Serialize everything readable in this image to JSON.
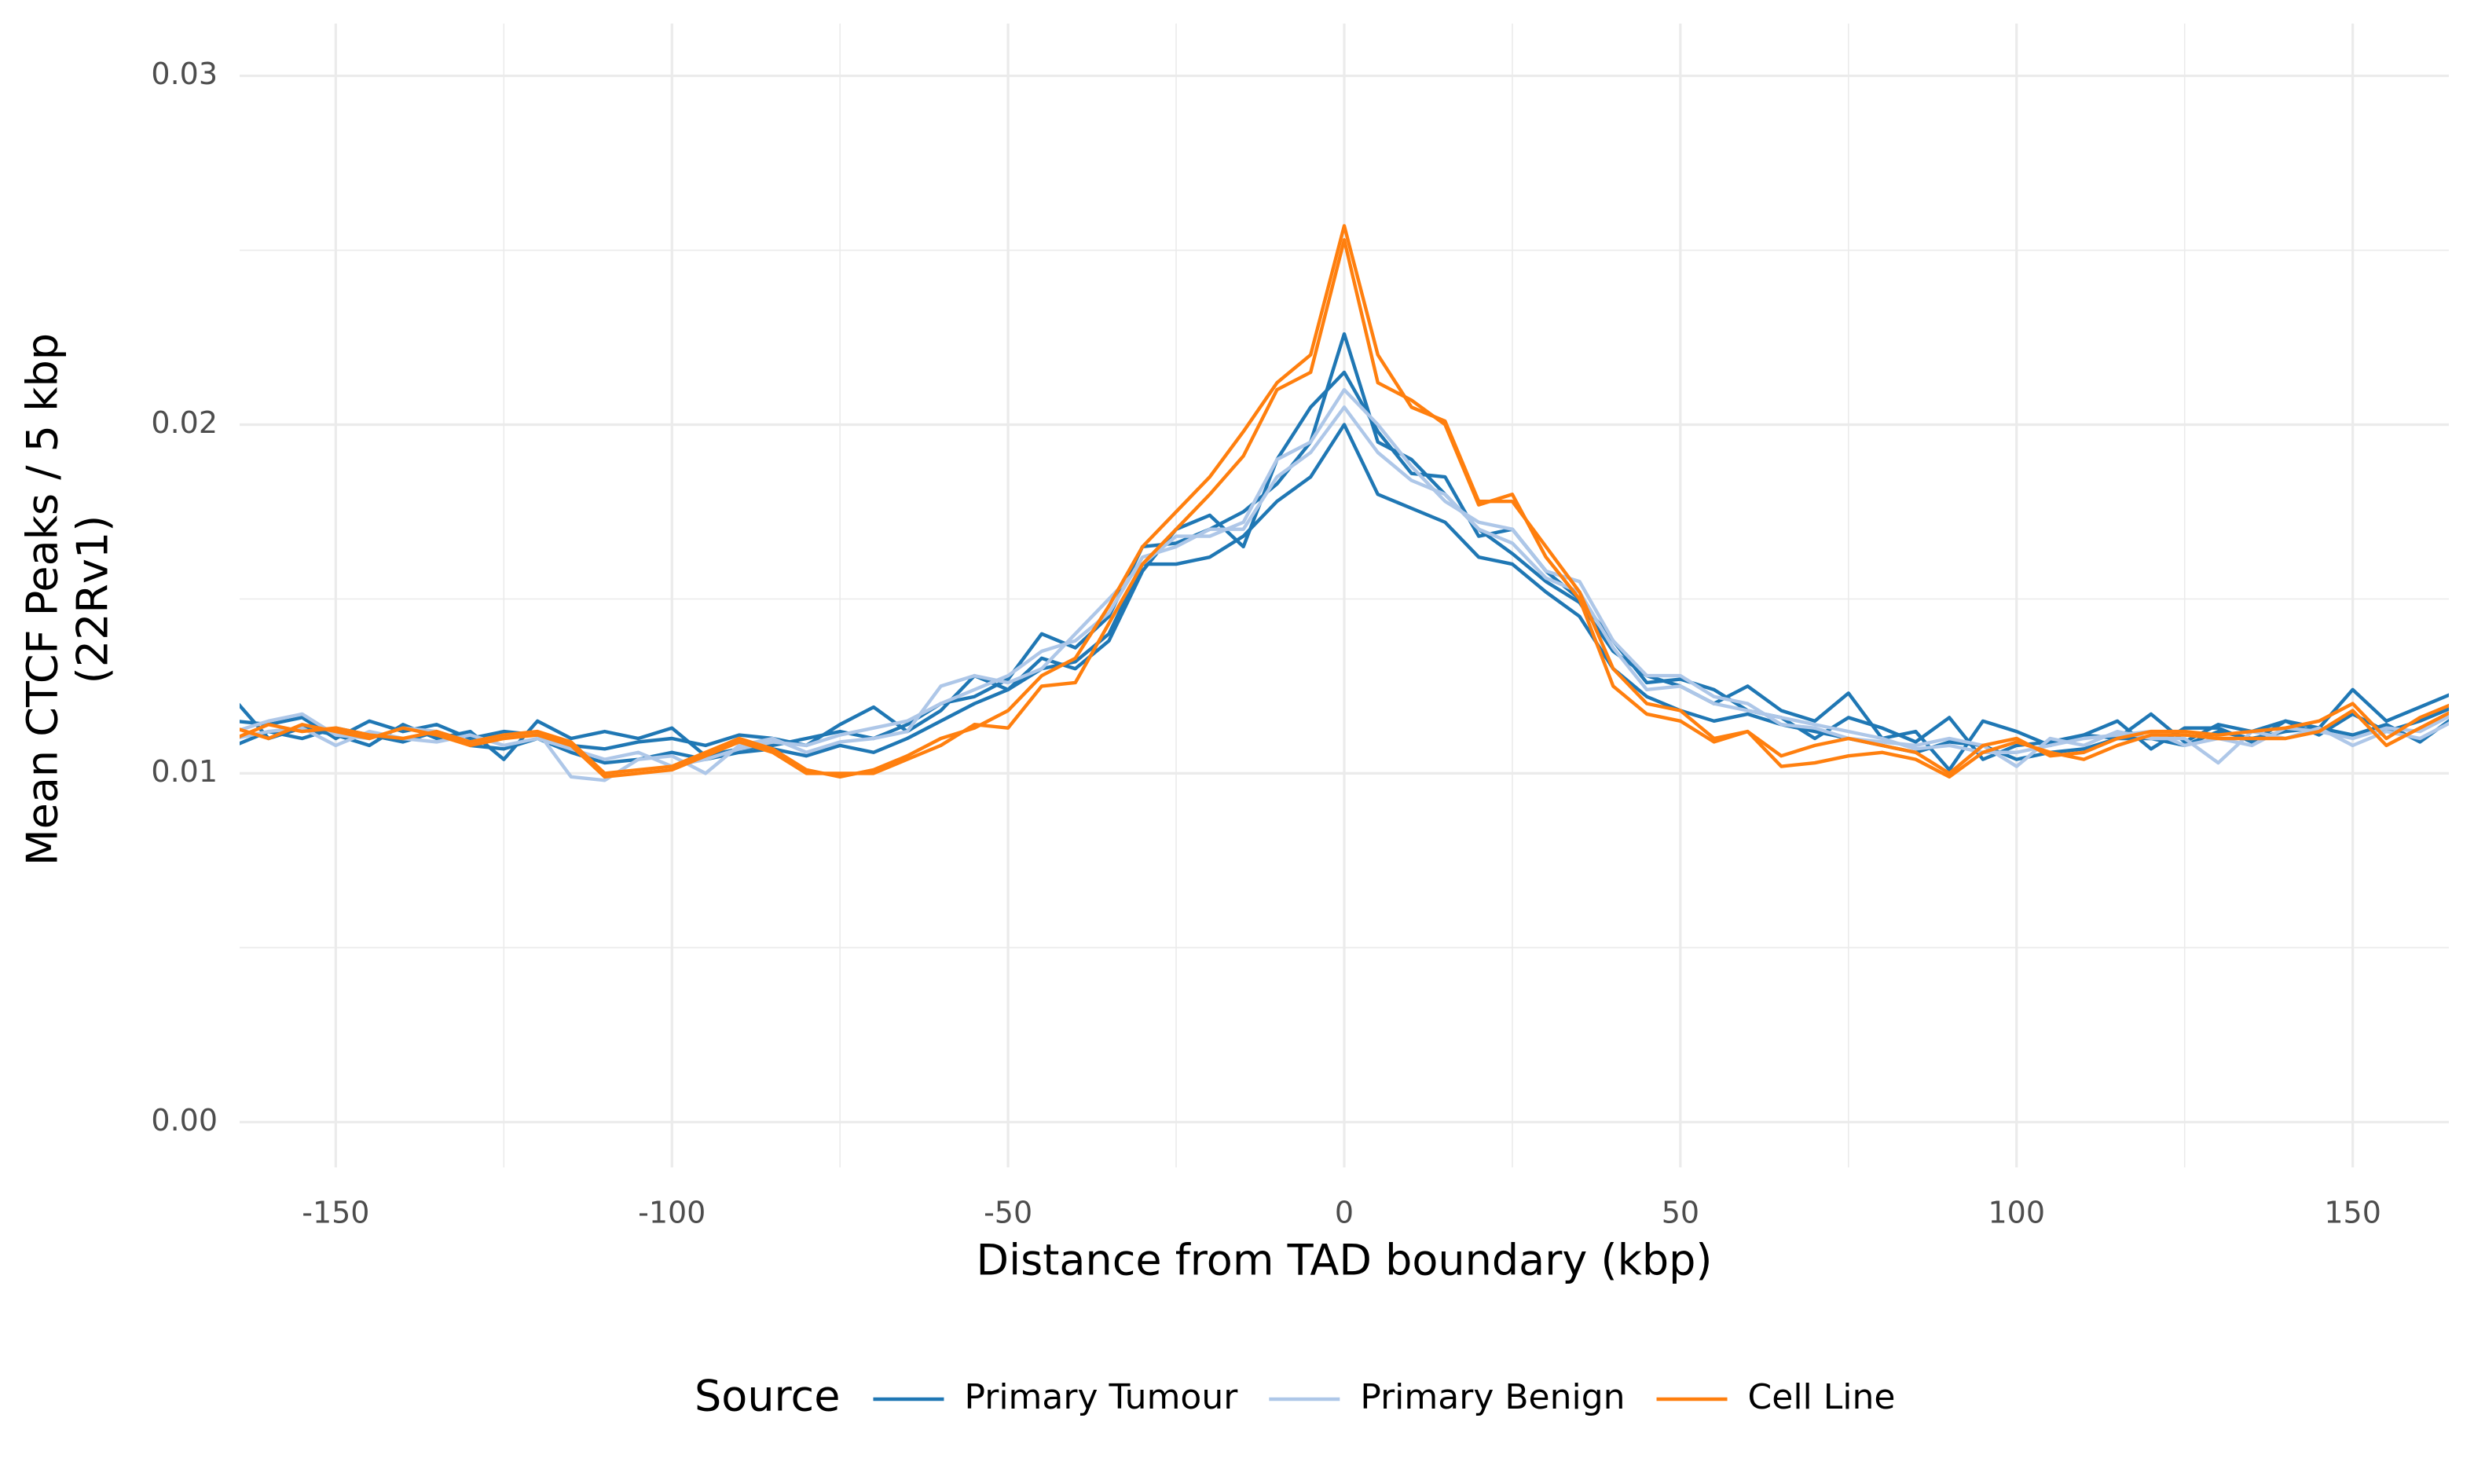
{
  "chart_data": {
    "type": "line",
    "xlabel": "Distance from TAD boundary (kbp)",
    "ylabel": [
      "Mean CTCF Peaks / 5 kbp",
      "(22Rv1)"
    ],
    "legend_title": "Source",
    "legend": "bottom",
    "grid": true,
    "xlim": [
      -164.3,
      164.3
    ],
    "ylim": [
      -0.0013,
      0.0315
    ],
    "xticks": [
      -150,
      -100,
      -50,
      0,
      50,
      100,
      150
    ],
    "yticks": [
      {
        "value": 0,
        "label": "0.00"
      },
      0.01,
      0.02,
      0.03
    ],
    "xminor": [
      -125,
      -75,
      -25,
      25,
      75,
      125
    ],
    "yminor": [
      0.005,
      0.015,
      0.025
    ],
    "x": [
      -165,
      -160,
      -155,
      -150,
      -145,
      -140,
      -135,
      -130,
      -125,
      -120,
      -115,
      -110,
      -105,
      -100,
      -95,
      -90,
      -85,
      -80,
      -75,
      -70,
      -65,
      -60,
      -55,
      -50,
      -45,
      -40,
      -35,
      -30,
      -25,
      -20,
      -15,
      -10,
      -5,
      0,
      5,
      10,
      15,
      20,
      25,
      30,
      35,
      40,
      45,
      50,
      55,
      60,
      65,
      70,
      75,
      80,
      85,
      90,
      95,
      100,
      105,
      110,
      115,
      120,
      125,
      130,
      135,
      140,
      145,
      150,
      155,
      160,
      165
    ],
    "series": [
      {
        "name": "Primary Tumour",
        "color": "#1f77b4",
        "values": [
          0.0121,
          0.011,
          0.0113,
          0.0111,
          0.0108,
          0.0114,
          0.011,
          0.0112,
          0.0104,
          0.0115,
          0.011,
          0.0112,
          0.011,
          0.0113,
          0.0105,
          0.0107,
          0.0108,
          0.011,
          0.0112,
          0.011,
          0.0114,
          0.012,
          0.0122,
          0.0127,
          0.014,
          0.0136,
          0.0145,
          0.0165,
          0.0166,
          0.017,
          0.0175,
          0.0183,
          0.0195,
          0.0226,
          0.0195,
          0.019,
          0.018,
          0.017,
          0.0163,
          0.0155,
          0.0149,
          0.0135,
          0.0128,
          0.0125,
          0.012,
          0.0125,
          0.0118,
          0.0115,
          0.0123,
          0.011,
          0.0112,
          0.0101,
          0.0115,
          0.0112,
          0.0108,
          0.0111,
          0.011,
          0.0117,
          0.0109,
          0.0114,
          0.0112,
          0.0115,
          0.0113,
          0.0124,
          0.0115,
          0.0119,
          0.0123
        ]
      },
      {
        "name": "Primary Tumour",
        "color": "#1f77b4",
        "values": [
          0.0108,
          0.0112,
          0.011,
          0.0113,
          0.0111,
          0.0109,
          0.0112,
          0.0108,
          0.0107,
          0.011,
          0.0106,
          0.0103,
          0.0104,
          0.0106,
          0.0104,
          0.0106,
          0.0107,
          0.0105,
          0.0108,
          0.0106,
          0.011,
          0.0115,
          0.012,
          0.0124,
          0.013,
          0.0132,
          0.014,
          0.016,
          0.016,
          0.0162,
          0.0168,
          0.0178,
          0.0185,
          0.02,
          0.018,
          0.0176,
          0.0172,
          0.0162,
          0.016,
          0.0152,
          0.0145,
          0.013,
          0.0122,
          0.0118,
          0.0115,
          0.0117,
          0.0114,
          0.0112,
          0.011,
          0.0108,
          0.0106,
          0.0109,
          0.0108,
          0.0104,
          0.0106,
          0.0107,
          0.011,
          0.011,
          0.0108,
          0.0112,
          0.011,
          0.0112,
          0.0113,
          0.0111,
          0.0114,
          0.0109,
          0.0116
        ]
      },
      {
        "name": "Primary Tumour",
        "color": "#1f77b4",
        "values": [
          0.0115,
          0.0114,
          0.0116,
          0.011,
          0.0115,
          0.0112,
          0.0114,
          0.011,
          0.0112,
          0.0111,
          0.0108,
          0.0107,
          0.0109,
          0.011,
          0.0108,
          0.0111,
          0.011,
          0.0108,
          0.0114,
          0.0119,
          0.0112,
          0.0118,
          0.0128,
          0.0124,
          0.0133,
          0.013,
          0.0138,
          0.0158,
          0.017,
          0.0174,
          0.0165,
          0.019,
          0.0205,
          0.0215,
          0.0198,
          0.0186,
          0.0185,
          0.0168,
          0.017,
          0.0158,
          0.015,
          0.0138,
          0.0126,
          0.0127,
          0.0124,
          0.0118,
          0.0116,
          0.011,
          0.0116,
          0.0113,
          0.0109,
          0.0116,
          0.0104,
          0.0108,
          0.0109,
          0.0111,
          0.0115,
          0.0107,
          0.0113,
          0.0113,
          0.0109,
          0.0115,
          0.0111,
          0.0117,
          0.0112,
          0.0115,
          0.0119
        ]
      },
      {
        "name": "Primary Benign",
        "color": "#aec7e8",
        "values": [
          0.0112,
          0.0115,
          0.0117,
          0.0111,
          0.011,
          0.0113,
          0.0112,
          0.0109,
          0.011,
          0.0112,
          0.0099,
          0.0098,
          0.0104,
          0.0105,
          0.01,
          0.0108,
          0.011,
          0.0106,
          0.0109,
          0.011,
          0.0112,
          0.0125,
          0.0128,
          0.0126,
          0.013,
          0.014,
          0.015,
          0.016,
          0.0168,
          0.0168,
          0.0172,
          0.019,
          0.0195,
          0.021,
          0.02,
          0.0188,
          0.0178,
          0.0172,
          0.017,
          0.0158,
          0.0155,
          0.0138,
          0.0128,
          0.0128,
          0.0122,
          0.012,
          0.0114,
          0.0113,
          0.011,
          0.0109,
          0.0108,
          0.011,
          0.0108,
          0.0102,
          0.011,
          0.0108,
          0.0112,
          0.011,
          0.011,
          0.0103,
          0.0112,
          0.011,
          0.0113,
          0.0108,
          0.0112,
          0.011,
          0.0115
        ]
      },
      {
        "name": "Primary Benign",
        "color": "#aec7e8",
        "values": [
          0.011,
          0.0112,
          0.0113,
          0.0108,
          0.0112,
          0.011,
          0.0109,
          0.0111,
          0.0108,
          0.011,
          0.0107,
          0.0104,
          0.0106,
          0.0102,
          0.0104,
          0.0107,
          0.0109,
          0.0108,
          0.0111,
          0.0113,
          0.0115,
          0.012,
          0.0124,
          0.0128,
          0.0135,
          0.0138,
          0.0146,
          0.0162,
          0.0165,
          0.017,
          0.017,
          0.0185,
          0.0192,
          0.0205,
          0.0192,
          0.0184,
          0.018,
          0.017,
          0.0166,
          0.0156,
          0.0152,
          0.0136,
          0.0124,
          0.0125,
          0.012,
          0.0118,
          0.0116,
          0.0114,
          0.0112,
          0.011,
          0.0107,
          0.0108,
          0.0106,
          0.0106,
          0.0108,
          0.011,
          0.0111,
          0.0112,
          0.0108,
          0.011,
          0.0108,
          0.0113,
          0.0112,
          0.011,
          0.0113,
          0.0112,
          0.0117
        ]
      },
      {
        "name": "Cell Line",
        "color": "#ff7f0e",
        "values": [
          0.0113,
          0.011,
          0.0114,
          0.0112,
          0.011,
          0.0113,
          0.0111,
          0.0108,
          0.011,
          0.0111,
          0.0108,
          0.0099,
          0.01,
          0.0101,
          0.0105,
          0.0109,
          0.0106,
          0.01,
          0.01,
          0.01,
          0.0104,
          0.0108,
          0.0114,
          0.0113,
          0.0125,
          0.0126,
          0.0143,
          0.016,
          0.017,
          0.018,
          0.0191,
          0.021,
          0.0215,
          0.0253,
          0.0212,
          0.0207,
          0.02,
          0.0177,
          0.018,
          0.0162,
          0.015,
          0.0125,
          0.0117,
          0.0115,
          0.0109,
          0.0112,
          0.0102,
          0.0103,
          0.0105,
          0.0106,
          0.0104,
          0.0099,
          0.0106,
          0.0109,
          0.0106,
          0.0104,
          0.0108,
          0.0111,
          0.0111,
          0.011,
          0.011,
          0.011,
          0.0112,
          0.0118,
          0.0108,
          0.0113,
          0.0118
        ]
      },
      {
        "name": "Cell Line",
        "color": "#ff7f0e",
        "values": [
          0.011,
          0.0114,
          0.0112,
          0.0113,
          0.0111,
          0.011,
          0.0112,
          0.0109,
          0.0111,
          0.0112,
          0.0109,
          0.01,
          0.0101,
          0.0102,
          0.0106,
          0.011,
          0.0107,
          0.0101,
          0.0099,
          0.0101,
          0.0105,
          0.011,
          0.0113,
          0.0118,
          0.0128,
          0.0133,
          0.0148,
          0.0165,
          0.0175,
          0.0185,
          0.0198,
          0.0212,
          0.022,
          0.0257,
          0.022,
          0.0205,
          0.0201,
          0.0178,
          0.0178,
          0.0165,
          0.0152,
          0.013,
          0.012,
          0.0118,
          0.011,
          0.0112,
          0.0105,
          0.0108,
          0.011,
          0.0108,
          0.0106,
          0.01,
          0.0108,
          0.011,
          0.0105,
          0.0106,
          0.011,
          0.0112,
          0.0112,
          0.0111,
          0.0112,
          0.0113,
          0.0115,
          0.012,
          0.011,
          0.0116,
          0.012
        ]
      }
    ]
  }
}
